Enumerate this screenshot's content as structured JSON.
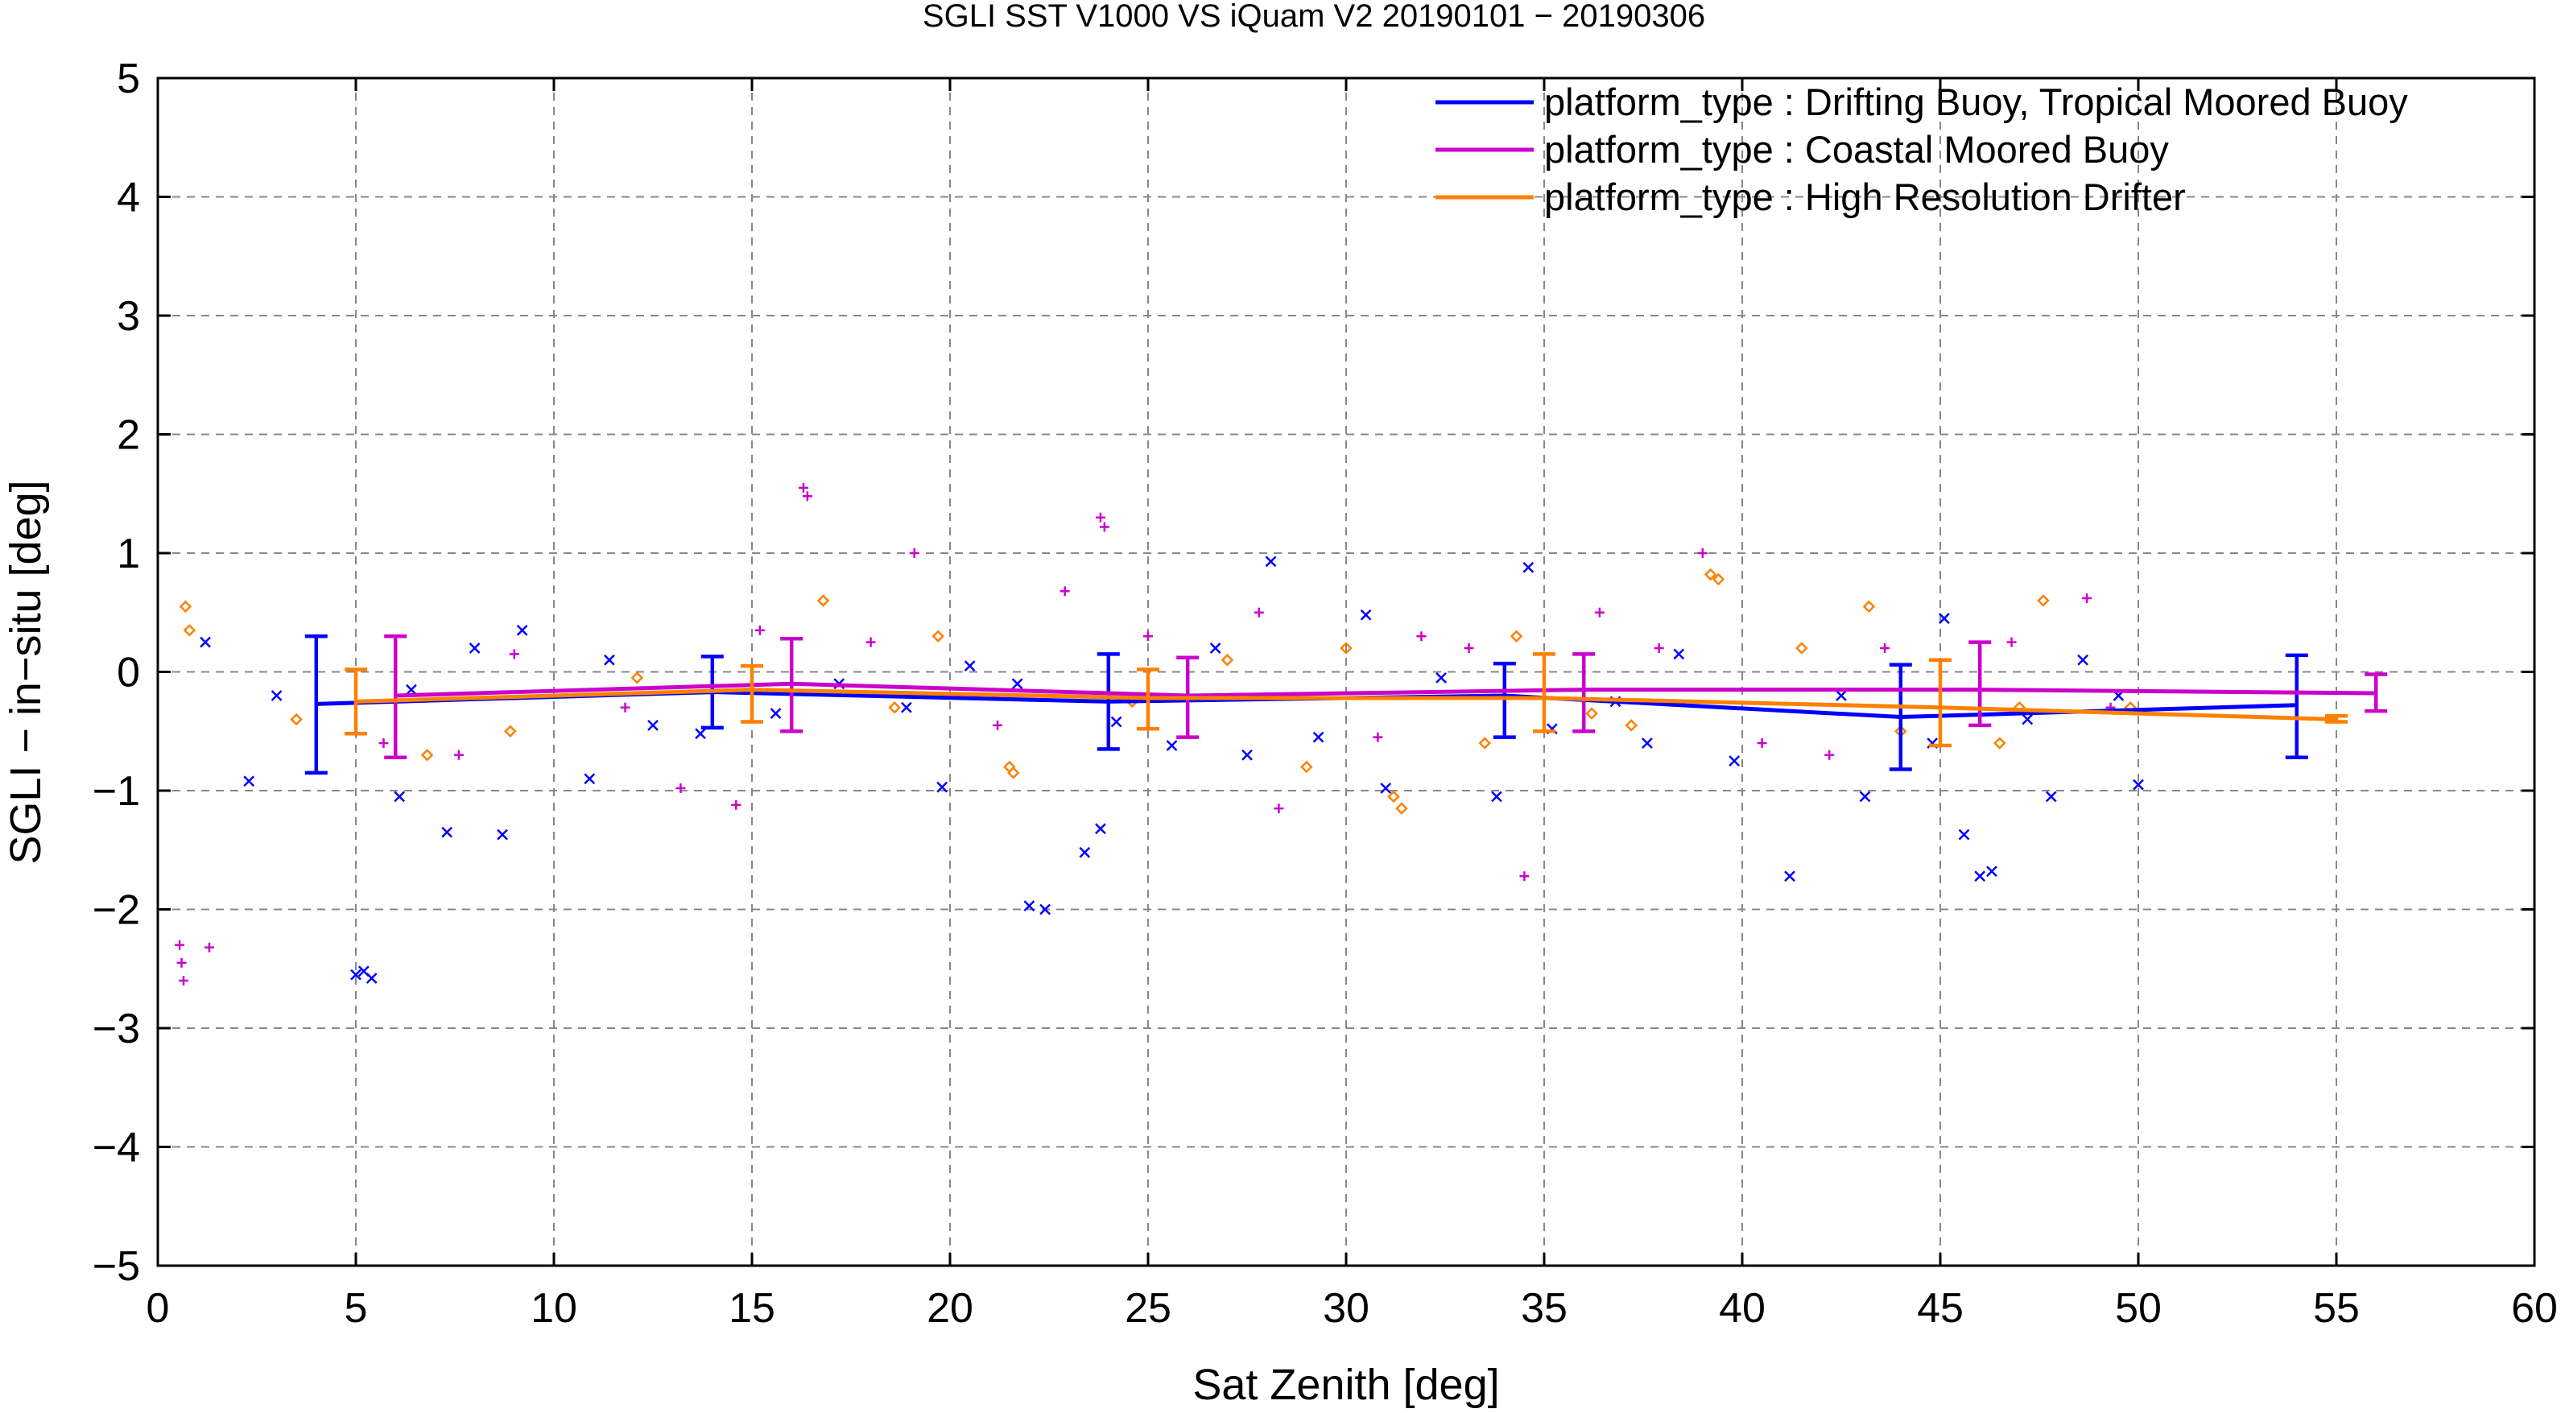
{
  "chart_data": {
    "type": "scatter",
    "title": "SGLI SST V1000 VS iQuam V2 20190101 − 20190306",
    "xlabel": "Sat Zenith [deg]",
    "ylabel": "SGLI − in−situ [deg]",
    "xlim": [
      0,
      60
    ],
    "ylim": [
      -5,
      5
    ],
    "x_ticks": [
      "0",
      "5",
      "10",
      "15",
      "20",
      "25",
      "30",
      "35",
      "40",
      "45",
      "50",
      "55",
      "60"
    ],
    "y_ticks": [
      "−5",
      "−4",
      "−3",
      "−2",
      "−1",
      "0",
      "1",
      "2",
      "3",
      "4",
      "5"
    ],
    "grid": true,
    "legend_position": "top-right",
    "series": [
      {
        "name": "platform_type : Drifting Buoy, Tropical Moored Buoy",
        "color": "#0000ff",
        "marker": "x",
        "mean_line": {
          "x": [
            4,
            14,
            24,
            34,
            44,
            54
          ],
          "y": [
            -0.27,
            -0.17,
            -0.25,
            -0.2,
            -0.38,
            -0.28
          ]
        },
        "error_bars": {
          "x": [
            4,
            14,
            24,
            34,
            44,
            54
          ],
          "low": [
            -0.85,
            -0.47,
            -0.65,
            -0.55,
            -0.82,
            -0.72
          ],
          "high": [
            0.3,
            0.13,
            0.15,
            0.07,
            0.06,
            0.14
          ]
        },
        "points": [
          [
            5.0,
            -2.55
          ],
          [
            5.2,
            -2.52
          ],
          [
            5.4,
            -2.58
          ],
          [
            7.3,
            -1.35
          ],
          [
            8.7,
            -1.37
          ],
          [
            10.9,
            -0.9
          ],
          [
            2.3,
            -0.92
          ],
          [
            6.1,
            -1.05
          ],
          [
            22.0,
            -1.97
          ],
          [
            22.4,
            -2.0
          ],
          [
            23.4,
            -1.52
          ],
          [
            23.8,
            -1.32
          ],
          [
            28.1,
            0.93
          ],
          [
            34.6,
            0.88
          ],
          [
            41.2,
            -1.72
          ],
          [
            43.1,
            -1.05
          ],
          [
            45.6,
            -1.37
          ],
          [
            46.0,
            -1.72
          ],
          [
            46.3,
            -1.68
          ],
          [
            47.8,
            -1.05
          ],
          [
            50.0,
            -0.95
          ],
          [
            19.8,
            -0.97
          ],
          [
            31.0,
            -0.98
          ],
          [
            33.8,
            -1.05
          ],
          [
            25.6,
            -0.62
          ],
          [
            6.4,
            -0.15
          ],
          [
            8.0,
            0.2
          ],
          [
            9.2,
            0.35
          ],
          [
            12.5,
            -0.45
          ],
          [
            13.7,
            -0.52
          ],
          [
            17.2,
            -0.1
          ],
          [
            18.9,
            -0.3
          ],
          [
            20.5,
            0.05
          ],
          [
            24.2,
            -0.42
          ],
          [
            27.5,
            -0.7
          ],
          [
            29.3,
            -0.55
          ],
          [
            32.4,
            -0.05
          ],
          [
            35.2,
            -0.48
          ],
          [
            37.6,
            -0.6
          ],
          [
            39.8,
            -0.75
          ],
          [
            42.5,
            -0.2
          ],
          [
            44.8,
            -0.6
          ],
          [
            47.2,
            -0.4
          ],
          [
            49.5,
            -0.2
          ],
          [
            38.4,
            0.15
          ],
          [
            15.6,
            -0.35
          ],
          [
            11.4,
            0.1
          ],
          [
            3.0,
            -0.2
          ],
          [
            1.2,
            0.25
          ],
          [
            26.7,
            0.2
          ],
          [
            30.5,
            0.48
          ],
          [
            21.7,
            -0.1
          ],
          [
            36.8,
            -0.25
          ],
          [
            45.1,
            0.45
          ],
          [
            48.6,
            0.1
          ]
        ]
      },
      {
        "name": "platform_type : Coastal Moored Buoy",
        "color": "#cc00cc",
        "marker": "+",
        "mean_line": {
          "x": [
            6,
            16,
            26,
            36,
            46,
            56
          ],
          "y": [
            -0.2,
            -0.1,
            -0.2,
            -0.15,
            -0.15,
            -0.18
          ]
        },
        "error_bars": {
          "x": [
            6,
            16,
            26,
            36,
            46,
            56
          ],
          "low": [
            -0.72,
            -0.5,
            -0.55,
            -0.5,
            -0.45,
            -0.33
          ],
          "high": [
            0.3,
            0.28,
            0.12,
            0.15,
            0.25,
            -0.02
          ]
        },
        "points": [
          [
            0.55,
            -2.3
          ],
          [
            0.6,
            -2.45
          ],
          [
            0.65,
            -2.6
          ],
          [
            1.3,
            -2.32
          ],
          [
            16.3,
            1.55
          ],
          [
            16.4,
            1.48
          ],
          [
            23.8,
            1.3
          ],
          [
            23.9,
            1.22
          ],
          [
            19.1,
            1.0
          ],
          [
            34.5,
            -1.72
          ],
          [
            39.0,
            1.0
          ],
          [
            14.6,
            -1.12
          ],
          [
            13.2,
            -0.98
          ],
          [
            28.3,
            -1.15
          ],
          [
            22.9,
            0.68
          ],
          [
            48.7,
            0.62
          ],
          [
            5.7,
            -0.6
          ],
          [
            9.0,
            0.15
          ],
          [
            11.8,
            -0.3
          ],
          [
            18.0,
            0.25
          ],
          [
            21.2,
            -0.45
          ],
          [
            25.0,
            0.3
          ],
          [
            27.8,
            0.5
          ],
          [
            30.8,
            -0.55
          ],
          [
            33.1,
            0.2
          ],
          [
            36.4,
            0.5
          ],
          [
            40.5,
            -0.6
          ],
          [
            43.6,
            0.2
          ],
          [
            46.8,
            0.25
          ],
          [
            49.3,
            -0.3
          ],
          [
            7.6,
            -0.7
          ],
          [
            15.2,
            0.35
          ],
          [
            31.9,
            0.3
          ],
          [
            37.9,
            0.2
          ],
          [
            42.2,
            -0.7
          ]
        ]
      },
      {
        "name": "platform_type : High Resolution Drifter",
        "color": "#ff8000",
        "marker": "diamond",
        "mean_line": {
          "x": [
            5,
            15,
            25,
            35,
            45,
            55
          ],
          "y": [
            -0.25,
            -0.15,
            -0.22,
            -0.22,
            -0.3,
            -0.4
          ]
        },
        "error_bars": {
          "x": [
            5,
            15,
            25,
            35,
            45,
            55
          ],
          "low": [
            -0.52,
            -0.42,
            -0.48,
            -0.5,
            -0.62,
            -0.42
          ],
          "high": [
            0.02,
            0.05,
            0.02,
            0.15,
            0.1,
            -0.37
          ]
        },
        "points": [
          [
            0.7,
            0.55
          ],
          [
            0.8,
            0.35
          ],
          [
            21.5,
            -0.8
          ],
          [
            21.6,
            -0.85
          ],
          [
            29.0,
            -0.8
          ],
          [
            31.2,
            -1.05
          ],
          [
            31.4,
            -1.15
          ],
          [
            39.2,
            0.82
          ],
          [
            39.4,
            0.78
          ],
          [
            47.6,
            0.6
          ],
          [
            43.2,
            0.55
          ],
          [
            16.8,
            0.6
          ],
          [
            34.3,
            0.3
          ],
          [
            6.8,
            -0.7
          ],
          [
            8.9,
            -0.5
          ],
          [
            12.1,
            -0.05
          ],
          [
            18.6,
            -0.3
          ],
          [
            24.6,
            -0.25
          ],
          [
            27.0,
            0.1
          ],
          [
            30.0,
            0.2
          ],
          [
            33.5,
            -0.6
          ],
          [
            36.2,
            -0.35
          ],
          [
            41.5,
            0.2
          ],
          [
            44.0,
            -0.5
          ],
          [
            46.5,
            -0.6
          ],
          [
            49.8,
            -0.3
          ],
          [
            3.5,
            -0.4
          ],
          [
            19.7,
            0.3
          ],
          [
            37.2,
            -0.45
          ],
          [
            47.0,
            -0.3
          ]
        ]
      }
    ]
  }
}
